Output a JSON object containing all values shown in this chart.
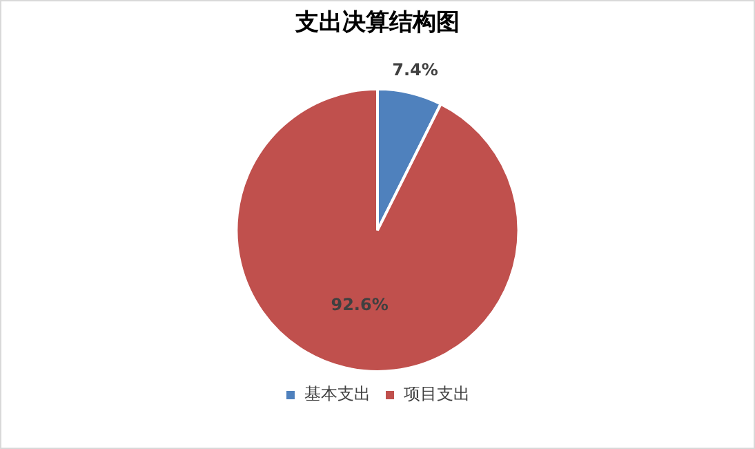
{
  "chart_data": {
    "type": "pie",
    "title": "支出决算结构图",
    "categories": [
      "基本支出",
      "项目支出"
    ],
    "values": [
      7.4,
      92.6
    ],
    "colors": [
      "#4f81bd",
      "#c0504d"
    ],
    "value_labels": [
      "7.4%",
      "92.6%"
    ],
    "legend": "bottom"
  }
}
